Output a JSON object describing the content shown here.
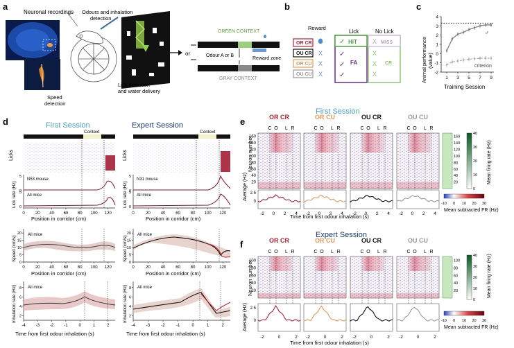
{
  "panels": {
    "a": {
      "letter": "a",
      "neuronal_recordings": "Neuronal recordings",
      "odour_detection_line1": "Odours and inhalation",
      "odour_detection_line2": "detection",
      "lick_line1": "Lick detection",
      "lick_line2": "and water delivery",
      "speed_line1": "Speed",
      "speed_line2": "detection",
      "or": "or",
      "green_context": "GREEN CONTEXT",
      "gray_context": "GRAY CONTEXT",
      "odour_ab": "Odour A or B",
      "reward_zone": "Reward zone"
    },
    "b": {
      "letter": "b",
      "col_reward": "Reward",
      "col_lick": "Lick",
      "col_nolick": "No Lick",
      "rows": [
        {
          "label": "OR CR",
          "reward": "drop",
          "lick": "HIT",
          "nolick": "MISS",
          "color": "#b22234"
        },
        {
          "label": "OU CR",
          "reward": "X",
          "lick": "",
          "nolick": "",
          "color": "#111111"
        },
        {
          "label": "OR CU",
          "reward": "X",
          "lick": "FA",
          "nolick": "CR",
          "color": "#e59a5a"
        },
        {
          "label": "OU CU",
          "reward": "X",
          "lick": "",
          "nolick": "",
          "color": "#9a9a9a"
        }
      ]
    },
    "c": {
      "letter": "c",
      "ylabel_line1": "Animal performance",
      "ylabel_line2": "(value)",
      "xlabel": "Training Session",
      "criterion": "criterion",
      "male_symbol": "♂",
      "chart_data": {
        "type": "line",
        "x": [
          1,
          2,
          3,
          4,
          5,
          6,
          7,
          8,
          9
        ],
        "series": [
          {
            "name": "performance",
            "values": [
              0.3,
              1.6,
              2.1,
              2.3,
              2.6,
              2.8,
              3.0,
              3.1,
              3.1
            ]
          },
          {
            "name": "criterion",
            "values": [
              -1.2,
              -0.9,
              -0.8,
              -0.7,
              -0.6,
              -0.55,
              -0.5,
              -0.5,
              -0.5
            ]
          }
        ],
        "threshold": 3.3,
        "xticks": [
          "1",
          "3",
          "5",
          "7",
          "9"
        ],
        "yticks": [
          "-2",
          "-1",
          "0",
          "1",
          "2",
          "3",
          "4"
        ],
        "ylim": [
          -2,
          4
        ],
        "xlim": [
          0,
          9.5
        ]
      }
    },
    "d": {
      "letter": "d",
      "first_title": "First Session",
      "expert_title": "Expert Session",
      "context": "Context",
      "licks": "Licks",
      "lick_rate": "Lick rate (Hz)",
      "speed": "Speed (cm/s)",
      "inhalation": "Inhalation rate (Hz)",
      "position_label": "Position in corridor (cm)",
      "time_label": "Time from first odour inhalation (s)",
      "n53": "N53 mouse",
      "n31": "N31 mouse",
      "all_mice": "All mice",
      "pos_ticks": [
        "0",
        "20",
        "40",
        "60",
        "80",
        "100",
        "120"
      ],
      "time_ticks": [
        "-4",
        "-3",
        "-2",
        "-1",
        "0",
        "1",
        "2"
      ],
      "speed_ticks": [
        "0",
        "5",
        "10",
        "15",
        "20"
      ],
      "inh_ticks": [
        "2",
        "4",
        "6",
        "8"
      ],
      "lick_ticks": [
        "0",
        "5"
      ]
    },
    "e": {
      "letter": "e",
      "title": "First Session",
      "neuron_axis": "Neuron number",
      "average_axis": "Average (Hz)",
      "time_label": "Time from first odour inhalation (s)",
      "col_labels": [
        "OR CR",
        "OR CU",
        "OU CR",
        "OU CU"
      ],
      "col_colors": [
        "#b22234",
        "#e59a5a",
        "#111111",
        "#9a9a9a"
      ],
      "markers": [
        "C",
        "O",
        "L",
        "R"
      ],
      "yticks": [
        "20",
        "40",
        "60",
        "80",
        "100",
        "120",
        "140",
        "160"
      ],
      "xticks": [
        "-2",
        "0",
        "2",
        "4"
      ],
      "avg_ticks": [
        "0",
        "2.5"
      ],
      "firing_label": "Mean firing rate (Hz)",
      "firing_ticks": [
        "0",
        "10",
        "20",
        "30",
        "40"
      ],
      "subtracted_label": "Mean subtracted FR (Hz)",
      "sub_ticks": [
        "-10",
        "0",
        "10",
        "20",
        "30"
      ],
      "side_ticks": [
        "20",
        "40",
        "60",
        "80",
        "100",
        "120",
        "140",
        "160"
      ]
    },
    "f": {
      "letter": "f",
      "title": "Expert Session",
      "neuron_axis": "Neuron number",
      "average_axis": "Average (Hz)",
      "time_label": "Time from first odour inhalation (s)",
      "col_labels": [
        "OR CR",
        "OR CU",
        "OU CR",
        "OU CU"
      ],
      "col_colors": [
        "#b22234",
        "#e59a5a",
        "#111111",
        "#9a9a9a"
      ],
      "markers": [
        "C",
        "O",
        "L",
        "R"
      ],
      "yticks": [
        "20",
        "40",
        "60",
        "80",
        "100"
      ],
      "xticks": [
        "-2",
        "0",
        "2"
      ],
      "avg_ticks": [
        "0",
        "2.5"
      ],
      "firing_label": "Mean firing rate (Hz)",
      "firing_ticks": [
        "0",
        "10",
        "20",
        "30",
        "40"
      ],
      "subtracted_label": "Mean subtracted FR (Hz)",
      "sub_ticks": [
        "-10",
        "0",
        "10",
        "20",
        "30"
      ],
      "side_ticks": [
        "20",
        "40",
        "60",
        "80",
        "100"
      ]
    }
  }
}
